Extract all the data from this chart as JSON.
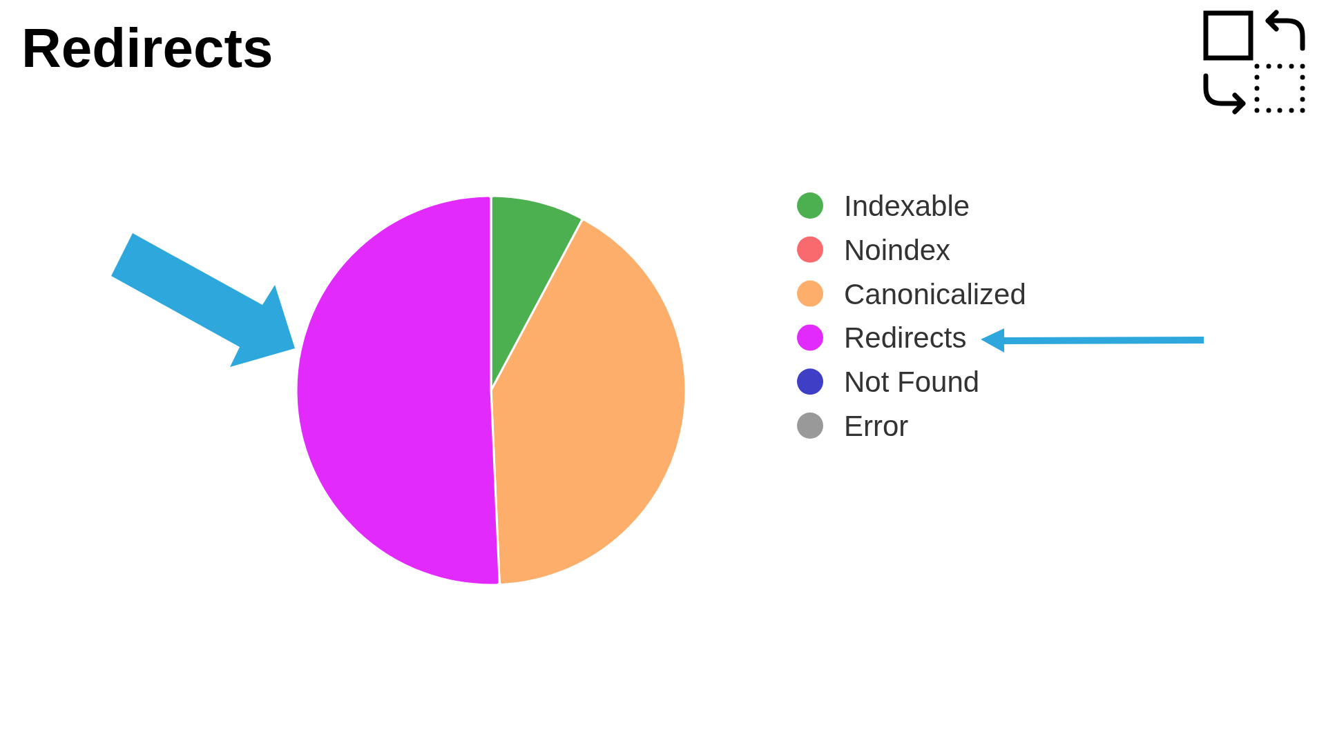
{
  "chart_data": {
    "type": "pie",
    "title": "Redirects",
    "categories": [
      "Indexable",
      "Noindex",
      "Canonicalized",
      "Redirects",
      "Not Found",
      "Error"
    ],
    "values": [
      7.8,
      0,
      41.5,
      50.7,
      0,
      0
    ],
    "colors": [
      "#4caf50",
      "#f96a6f",
      "#fdae6b",
      "#e12afb",
      "#3f3fc6",
      "#999999"
    ],
    "legend": "right"
  }
}
